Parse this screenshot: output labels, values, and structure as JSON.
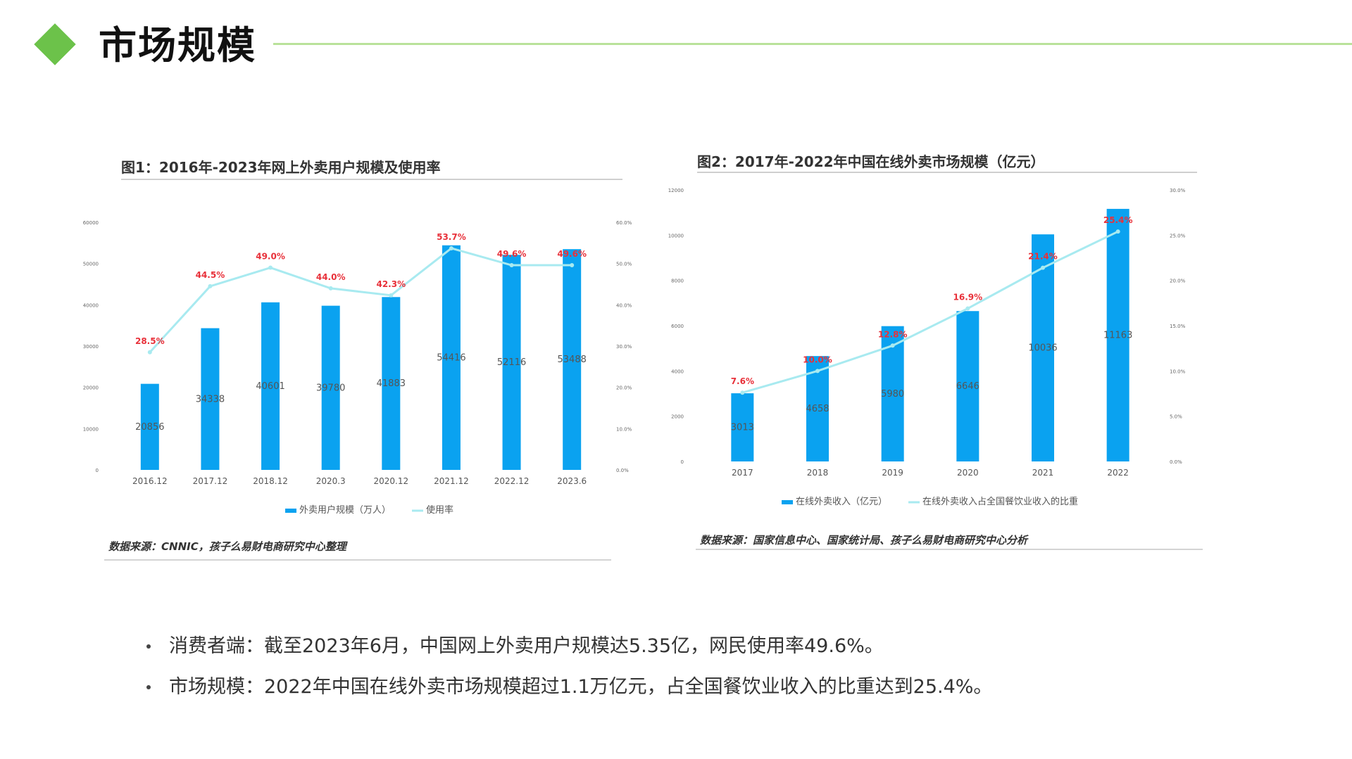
{
  "page": {
    "title": "市场规模",
    "colors": {
      "accent_green": "#6cc24a",
      "bar_blue": "#0aa2f0",
      "line_cyan": "#a8eaf0",
      "label_red": "#e8313a"
    }
  },
  "chart1": {
    "heading": "图1：2016年-2023年网上外卖用户规模及使用率",
    "source": "数据来源：CNNIC，孩子么易财电商研究中心整理",
    "legend_bar": "外卖用户规模（万人）",
    "legend_line": "使用率"
  },
  "chart2": {
    "heading": "图2：2017年-2022年中国在线外卖市场规模（亿元）",
    "source": "数据来源：国家信息中心、国家统计局、孩子么易财电商研究中心分析",
    "legend_bar": "在线外卖收入（亿元）",
    "legend_line": "在线外卖收入占全国餐饮业收入的比重"
  },
  "bullets": [
    "消费者端：截至2023年6月，中国网上外卖用户规模达5.35亿，网民使用率49.6%。",
    "市场规模：2022年中国在线外卖市场规模超过1.1万亿元，占全国餐饮业收入的比重达到25.4%。"
  ],
  "chart_data": [
    {
      "type": "bar",
      "categories": [
        "2016.12",
        "2017.12",
        "2018.12",
        "2020.3",
        "2020.12",
        "2021.12",
        "2022.12",
        "2023.6"
      ],
      "series": [
        {
          "name": "外卖用户规模（万人）",
          "type": "bar",
          "axis": "left",
          "values": [
            20856,
            34338,
            40601,
            39780,
            41883,
            54416,
            52116,
            53488
          ],
          "labels": [
            "20856",
            "34338",
            "40601",
            "39780",
            "41883",
            "54416",
            "52116",
            "53488"
          ]
        },
        {
          "name": "使用率",
          "type": "line",
          "axis": "right",
          "values": [
            28.5,
            44.5,
            49.0,
            44.0,
            42.3,
            53.7,
            49.6,
            49.6
          ],
          "labels": [
            "28.5%",
            "44.5%",
            "49.0%",
            "44.0%",
            "42.3%",
            "53.7%",
            "49.6%",
            "49.6%"
          ]
        }
      ],
      "y_left": {
        "ylim": [
          0,
          60000
        ],
        "ticks": [
          "0",
          "10000",
          "20000",
          "30000",
          "40000",
          "50000",
          "60000"
        ]
      },
      "y_right": {
        "ylim": [
          0,
          60
        ],
        "ticks": [
          "0.0%",
          "10.0%",
          "20.0%",
          "30.0%",
          "40.0%",
          "50.0%",
          "60.0%"
        ]
      }
    },
    {
      "type": "bar",
      "categories": [
        "2017",
        "2018",
        "2019",
        "2020",
        "2021",
        "2022"
      ],
      "series": [
        {
          "name": "在线外卖收入（亿元）",
          "type": "bar",
          "axis": "left",
          "values": [
            3013,
            4658,
            5980,
            6646,
            10036,
            11163
          ],
          "labels": [
            "3013",
            "4658",
            "5980",
            "6646",
            "10036",
            "11163"
          ]
        },
        {
          "name": "在线外卖收入占全国餐饮业收入的比重",
          "type": "line",
          "axis": "right",
          "values": [
            7.6,
            10.0,
            12.8,
            16.9,
            21.4,
            25.4
          ],
          "labels": [
            "7.6%",
            "10.0%",
            "12.8%",
            "16.9%",
            "21.4%",
            "25.4%"
          ]
        }
      ],
      "y_left": {
        "ylim": [
          0,
          12000
        ],
        "ticks": [
          "0",
          "2000",
          "4000",
          "6000",
          "8000",
          "10000",
          "12000"
        ]
      },
      "y_right": {
        "ylim": [
          0,
          30
        ],
        "ticks": [
          "0.0%",
          "5.0%",
          "10.0%",
          "15.0%",
          "20.0%",
          "25.0%",
          "30.0%"
        ]
      }
    }
  ]
}
